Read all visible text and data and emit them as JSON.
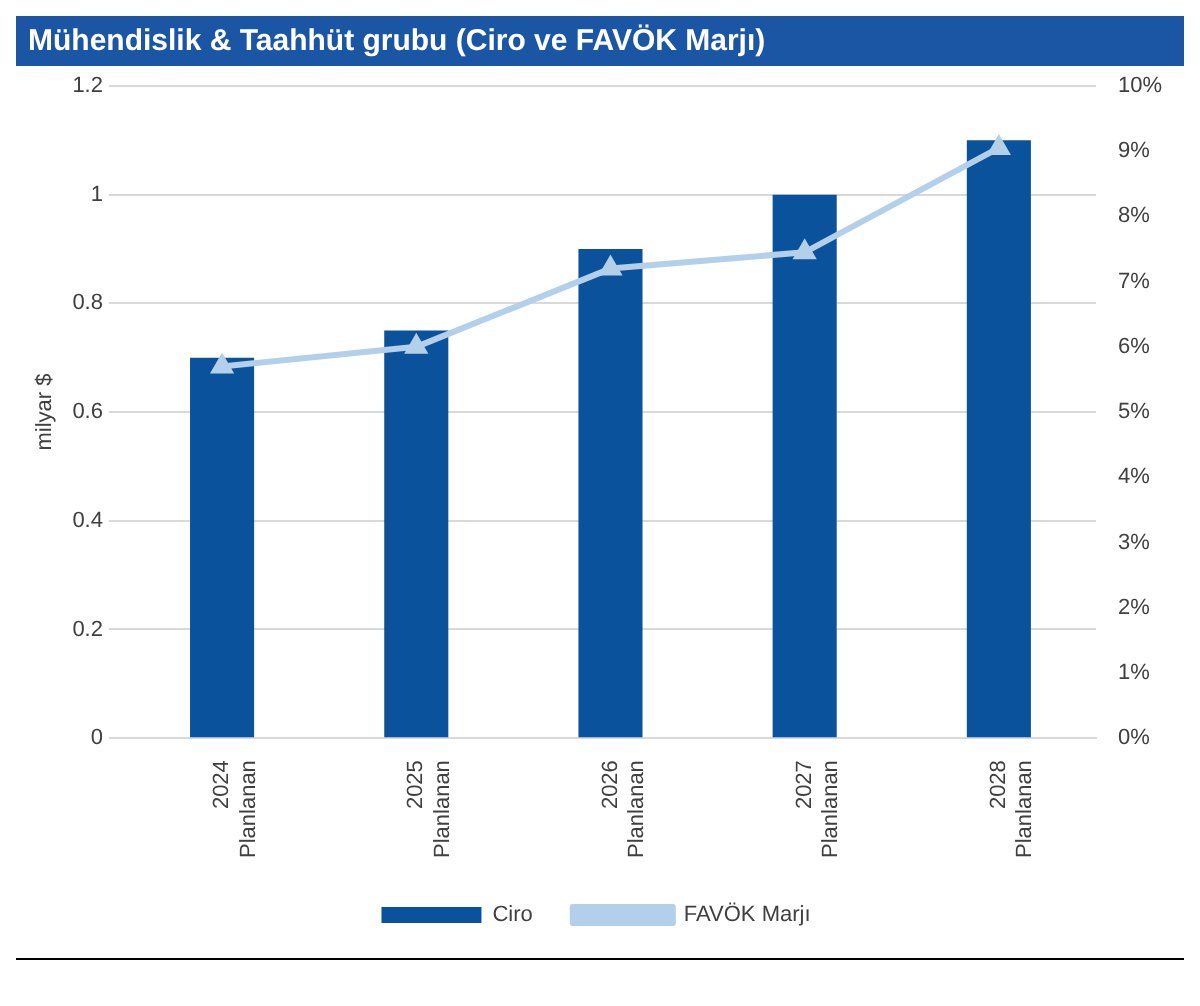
{
  "chart_data": {
    "type": "bar",
    "title": "Mühendislik & Taahhüt grubu (Ciro ve FAVÖK Marjı)",
    "categories": [
      "2024\nPlanlanan",
      "2025\nPlanlanan",
      "2026\nPlanlanan",
      "2027\nPlanlanan",
      "2028\nPlanlanan"
    ],
    "ylabel": "milyar $",
    "series": [
      {
        "name": "Ciro",
        "color": "#0b529c",
        "values": [
          0.7,
          0.75,
          0.9,
          1.0,
          1.1
        ]
      },
      {
        "name": "FAVÖK Marjı",
        "type": "line",
        "axis": "y2",
        "color": "#b4cfe9",
        "marker": "triangle",
        "values": [
          5.7,
          6.0,
          7.2,
          7.45,
          9.05
        ]
      }
    ],
    "ylim": [
      0,
      1.2
    ],
    "yticks": [
      0,
      0.2,
      0.4,
      0.6,
      0.8,
      1,
      1.2
    ],
    "y2lim": [
      0,
      10
    ],
    "y2ticks": [
      {
        "value": 0,
        "label": "0%"
      },
      {
        "value": 1,
        "label": "1%"
      },
      {
        "value": 2,
        "label": "2%"
      },
      {
        "value": 3,
        "label": "3%"
      },
      {
        "value": 4,
        "label": "4%"
      },
      {
        "value": 5,
        "label": "5%"
      },
      {
        "value": 6,
        "label": "6%"
      },
      {
        "value": 7,
        "label": "7%"
      },
      {
        "value": 8,
        "label": "8%"
      },
      {
        "value": 9,
        "label": "9%"
      },
      {
        "value": 10,
        "label": "10%"
      }
    ],
    "grid": "y",
    "legend": "bottom"
  }
}
